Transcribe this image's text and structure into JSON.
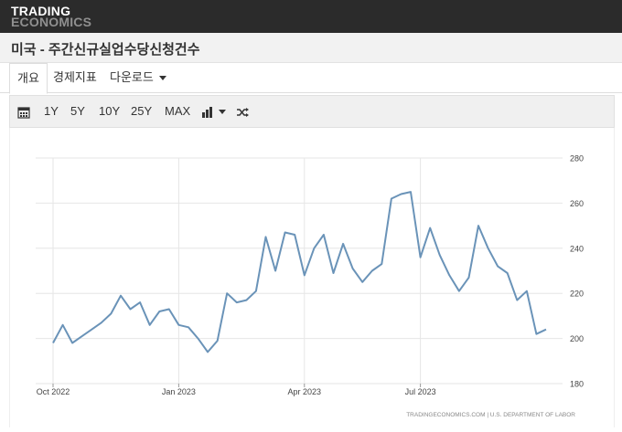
{
  "header": {
    "logo_line1": "TRADING",
    "logo_line2": "ECONOMICS"
  },
  "page": {
    "title": "미국 - 주간신규실업수당신청건수"
  },
  "tabs": [
    {
      "label": "개요",
      "active": true
    },
    {
      "label": "경제지표"
    },
    {
      "label": "다운로드"
    }
  ],
  "toolbar": {
    "calendar_icon": "calendar-icon",
    "ranges": [
      "1Y",
      "5Y",
      "10Y",
      "25Y",
      "MAX"
    ],
    "chart_type_icon": "bar-chart-icon",
    "compare_icon": "shuffle-icon"
  },
  "footer": {
    "source": "TRADINGECONOMICS.COM  |  U.S. DEPARTMENT OF LABOR"
  },
  "chart_data": {
    "type": "line",
    "title": "",
    "xlabel": "",
    "ylabel": "",
    "ylim": [
      180,
      280
    ],
    "y_ticks": [
      180,
      200,
      220,
      240,
      260,
      280
    ],
    "x_tick_labels": [
      "Oct 2022",
      "Jan 2023",
      "Apr 2023",
      "Jul 2023"
    ],
    "x_tick_index": [
      0,
      13,
      26,
      38
    ],
    "grid": true,
    "line_color": "#6a93b8",
    "series": [
      {
        "values": [
          198,
          206,
          198,
          201,
          204,
          207,
          211,
          219,
          213,
          216,
          206,
          212,
          213,
          206,
          205,
          200,
          194,
          199,
          220,
          216,
          217,
          221,
          245,
          230,
          247,
          246,
          228,
          240,
          246,
          229,
          242,
          231,
          225,
          230,
          233,
          262,
          264,
          265,
          236,
          249,
          237,
          228,
          221,
          227,
          250,
          240,
          232,
          229,
          217,
          221,
          202,
          204
        ]
      }
    ]
  }
}
